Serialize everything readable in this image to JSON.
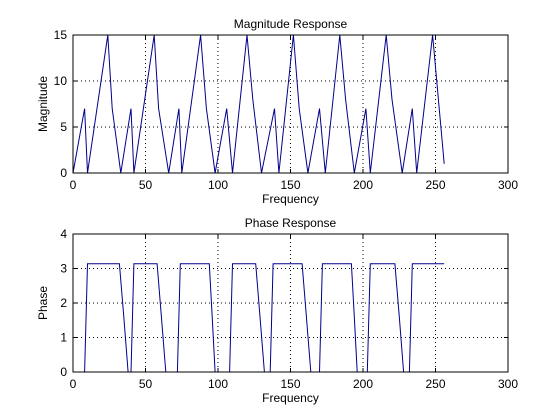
{
  "colors": {
    "background": "#ffffff",
    "line": "#00008b",
    "axes": "#000000",
    "grid": "#000000"
  },
  "chart_data": [
    {
      "type": "line",
      "title": "Magnitude Response",
      "xlabel": "Frequency",
      "ylabel": "Magnitude",
      "xlim": [
        0,
        300
      ],
      "ylim": [
        0,
        15
      ],
      "xticks": [
        0,
        50,
        100,
        150,
        200,
        250,
        300
      ],
      "yticks": [
        0,
        5,
        10,
        15
      ],
      "xtick_labels": [
        "0",
        "50",
        "100",
        "150",
        "200",
        "250",
        "300"
      ],
      "ytick_labels": [
        "0",
        "5",
        "10",
        "15"
      ],
      "grid": true,
      "series": [
        {
          "x": [
            0,
            8,
            10,
            24,
            27,
            33,
            40,
            42,
            56,
            59,
            66,
            73,
            75,
            88,
            92,
            98,
            106,
            110,
            120,
            124,
            130,
            139,
            142,
            152,
            156,
            162,
            170,
            174,
            184,
            188,
            194,
            202,
            205,
            216,
            220,
            227,
            234,
            237,
            248,
            252,
            256
          ],
          "y": [
            0,
            7,
            0,
            15,
            7,
            0,
            7,
            0,
            15,
            7,
            0,
            7,
            0,
            15,
            7,
            0,
            7,
            0,
            15,
            8,
            0,
            7,
            0,
            15,
            7,
            0,
            7,
            0,
            15,
            8,
            0,
            7,
            0,
            15,
            8,
            0,
            7,
            0,
            15,
            8,
            1
          ]
        }
      ]
    },
    {
      "type": "line",
      "title": "Phase Response",
      "xlabel": "Frequency",
      "ylabel": "Phase",
      "xlim": [
        0,
        300
      ],
      "ylim": [
        0,
        4
      ],
      "xticks": [
        0,
        50,
        100,
        150,
        200,
        250,
        300
      ],
      "yticks": [
        0,
        1,
        2,
        3,
        4
      ],
      "xtick_labels": [
        "0",
        "50",
        "100",
        "150",
        "200",
        "250",
        "300"
      ],
      "ytick_labels": [
        "0",
        "1",
        "2",
        "3",
        "4"
      ],
      "grid": true,
      "series": [
        {
          "x": [
            0,
            8,
            10,
            32,
            35,
            38,
            40,
            42,
            58,
            61,
            64,
            66,
            72,
            74,
            94,
            96,
            98,
            108,
            110,
            126,
            129,
            132,
            136,
            138,
            158,
            161,
            164,
            166,
            170,
            172,
            192,
            194,
            196,
            203,
            205,
            222,
            225,
            228,
            232,
            234,
            256
          ],
          "y": [
            0,
            0,
            3.14,
            3.14,
            1.6,
            0,
            0,
            3.14,
            3.14,
            1.6,
            0,
            0,
            0,
            3.14,
            3.14,
            1.6,
            0,
            0,
            3.14,
            3.14,
            1.6,
            0,
            0,
            3.14,
            3.14,
            1.6,
            0,
            0,
            0,
            3.14,
            3.14,
            1.6,
            0,
            0,
            3.14,
            3.14,
            1.6,
            0,
            0,
            3.14,
            3.14
          ]
        }
      ]
    }
  ]
}
